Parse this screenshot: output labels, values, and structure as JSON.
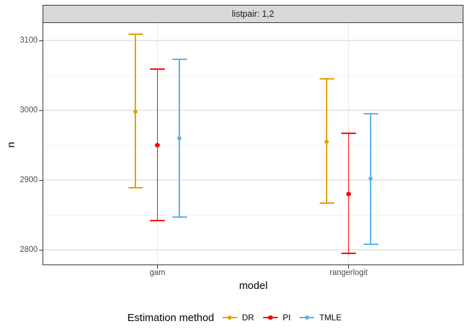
{
  "chart_data": {
    "type": "pointrange",
    "facet_label": "listpair: 1,2",
    "xlabel": "model",
    "ylabel": "n",
    "legend_title": "Estimation method",
    "categories": [
      "gam",
      "rangerlogit"
    ],
    "ylim": [
      2779,
      3125
    ],
    "y_ticks": [
      2800,
      2900,
      3000,
      3100
    ],
    "y_minor_ticks": [
      2850,
      2950,
      3050
    ],
    "grid": true,
    "legend_position": "bottom",
    "series": [
      {
        "name": "DR",
        "color": "#E0A200",
        "points": [
          {
            "x": "gam",
            "y": 2998,
            "ymin": 2888,
            "ymax": 3110
          },
          {
            "x": "rangerlogit",
            "y": 2955,
            "ymin": 2866,
            "ymax": 3046
          }
        ]
      },
      {
        "name": "PI",
        "color": "#FF0000",
        "points": [
          {
            "x": "gam",
            "y": 2950,
            "ymin": 2841,
            "ymax": 3060
          },
          {
            "x": "rangerlogit",
            "y": 2880,
            "ymin": 2794,
            "ymax": 2968
          }
        ]
      },
      {
        "name": "TMLE",
        "color": "#56B4E9",
        "points": [
          {
            "x": "gam",
            "y": 2960,
            "ymin": 2846,
            "ymax": 3074
          },
          {
            "x": "rangerlogit",
            "y": 2902,
            "ymin": 2807,
            "ymax": 2996
          }
        ]
      }
    ],
    "colors": {
      "strip_fill": "#D9D9D9",
      "panel_border": "#333333",
      "grid_major": "#E8E8E8",
      "grid_minor": "#F3F3F3",
      "tick_label": "#4D4D4D"
    }
  }
}
